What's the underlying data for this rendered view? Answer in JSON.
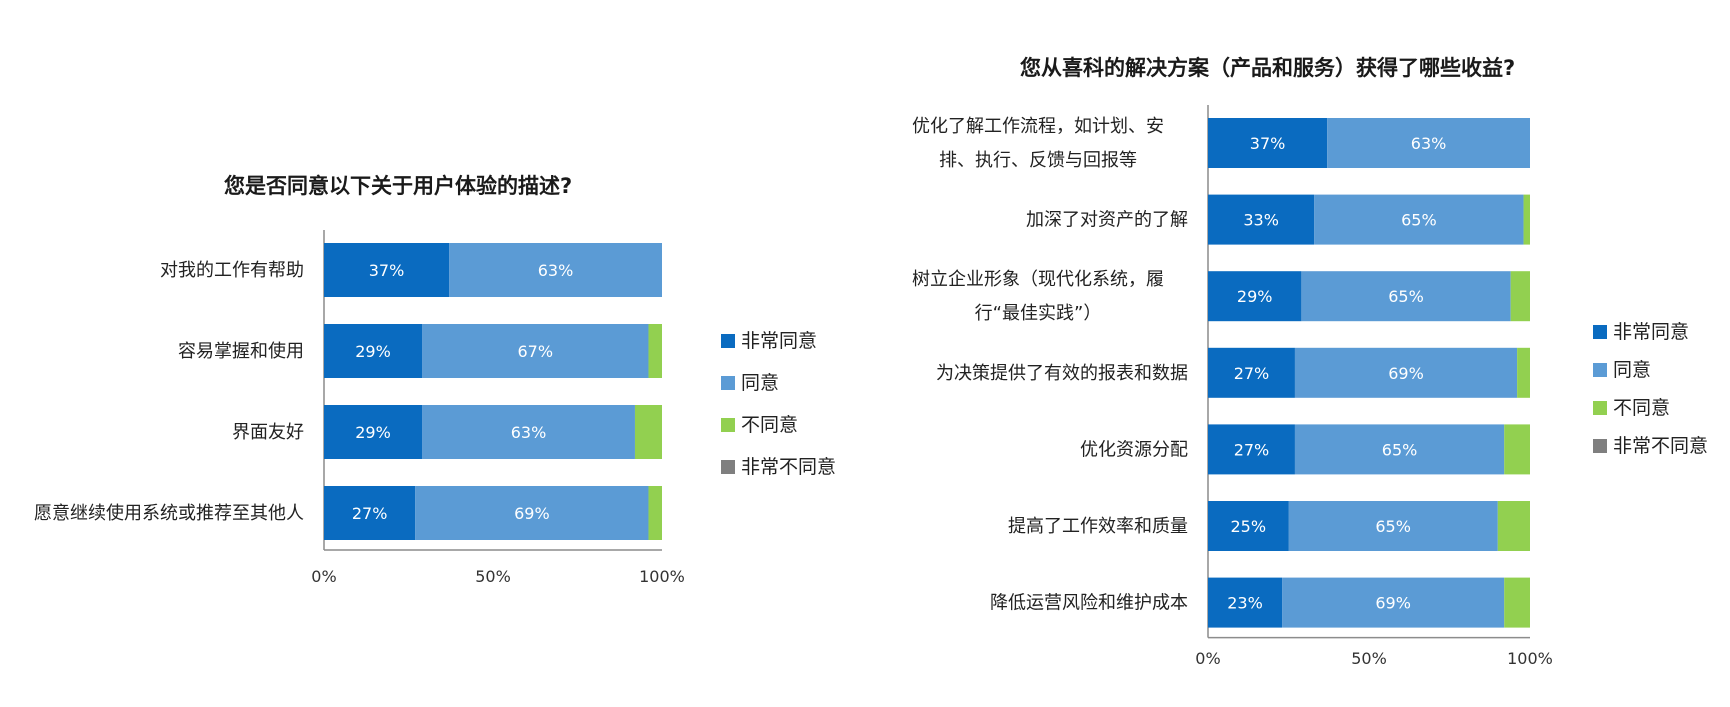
{
  "chart_data": [
    {
      "type": "bar",
      "orientation": "horizontal",
      "stacked": true,
      "title": "您是否同意以下关于用户体验的描述?",
      "categories": [
        "对我的工作有帮助",
        "容易掌握和使用",
        "界面友好",
        "愿意继续使用系统或推荐至其他人"
      ],
      "series": [
        {
          "name": "非常同意",
          "color": "#0a6bc0",
          "values": [
            37,
            29,
            29,
            27
          ]
        },
        {
          "name": "同意",
          "color": "#5b9bd5",
          "values": [
            63,
            67,
            63,
            69
          ]
        },
        {
          "name": "不同意",
          "color": "#92d050",
          "values": [
            0,
            4,
            8,
            4
          ]
        },
        {
          "name": "非常不同意",
          "color": "#7f7f7f",
          "values": [
            0,
            0,
            0,
            0
          ]
        }
      ],
      "value_labels": [
        [
          "37%",
          "63%"
        ],
        [
          "29%",
          "67%"
        ],
        [
          "29%",
          "63%"
        ],
        [
          "27%",
          "69%"
        ]
      ],
      "xticks": [
        "0%",
        "50%",
        "100%"
      ],
      "xlim": [
        0,
        100
      ],
      "legend": "right",
      "grid": false
    },
    {
      "type": "bar",
      "orientation": "horizontal",
      "stacked": true,
      "title": "您从喜科的解决方案（产品和服务）获得了哪些收益?",
      "categories": [
        "优化了解工作流程，如计划、安排、执行、反馈与回报等",
        "加深了对资产的了解",
        "树立企业形象（现代化系统，履行“最佳实践”）",
        "为决策提供了有效的报表和数据",
        "优化资源分配",
        "提高了工作效率和质量",
        "降低运营风险和维护成本"
      ],
      "series": [
        {
          "name": "非常同意",
          "color": "#0a6bc0",
          "values": [
            37,
            33,
            29,
            27,
            27,
            25,
            23
          ]
        },
        {
          "name": "同意",
          "color": "#5b9bd5",
          "values": [
            63,
            65,
            65,
            69,
            65,
            65,
            69
          ]
        },
        {
          "name": "不同意",
          "color": "#92d050",
          "values": [
            0,
            2,
            6,
            4,
            8,
            10,
            8
          ]
        },
        {
          "name": "非常不同意",
          "color": "#7f7f7f",
          "values": [
            0,
            0,
            0,
            0,
            0,
            0,
            0
          ]
        }
      ],
      "value_labels": [
        [
          "37%",
          "63%"
        ],
        [
          "33%",
          "65%"
        ],
        [
          "29%",
          "65%"
        ],
        [
          "27%",
          "69%"
        ],
        [
          "27%",
          "65%"
        ],
        [
          "25%",
          "65%"
        ],
        [
          "23%",
          "69%"
        ]
      ],
      "xticks": [
        "0%",
        "50%",
        "100%"
      ],
      "xlim": [
        0,
        100
      ],
      "legend": "right",
      "grid": false
    }
  ]
}
